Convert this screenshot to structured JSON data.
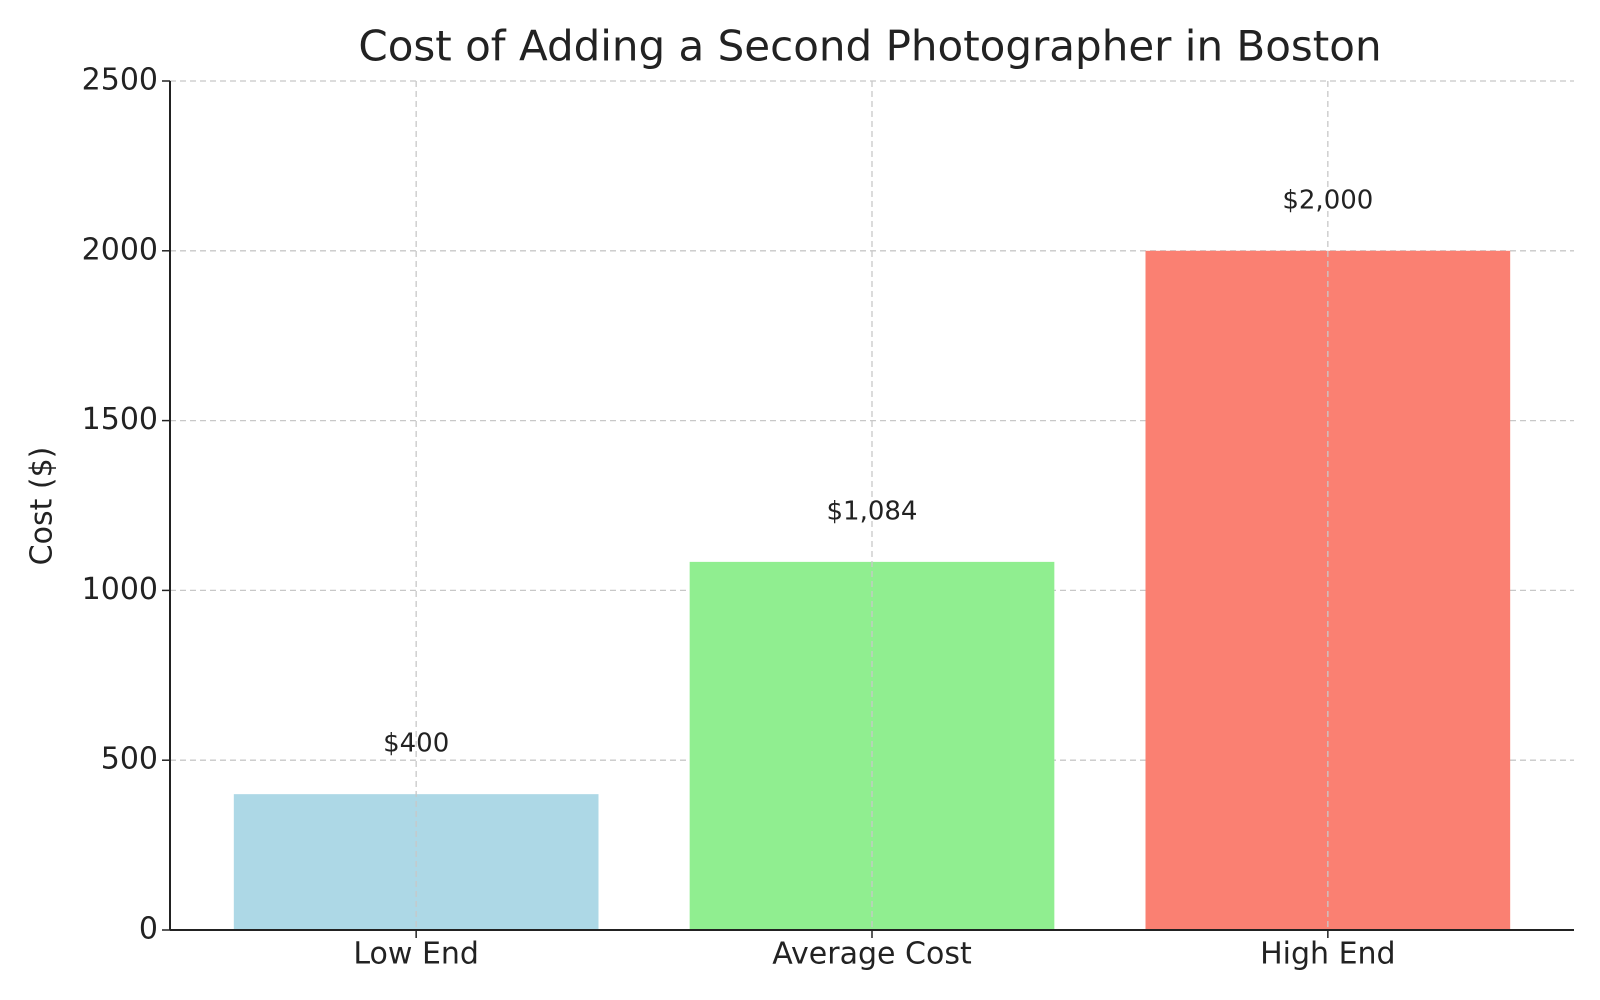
{
  "chart_data": {
    "type": "bar",
    "title": "Cost of Adding a Second Photographer in Boston",
    "ylabel": "Cost ($)",
    "categories": [
      "Low End",
      "Average Cost",
      "High End"
    ],
    "values": [
      400,
      1084,
      2000
    ],
    "value_labels": [
      "$400",
      "$1,084",
      "$2,000"
    ],
    "colors": [
      "#add8e6",
      "#90ee90",
      "#fa8072"
    ],
    "ylim": [
      0,
      2500
    ],
    "yticks": [
      0,
      500,
      1000,
      1500,
      2000,
      2500
    ],
    "grid": true
  }
}
